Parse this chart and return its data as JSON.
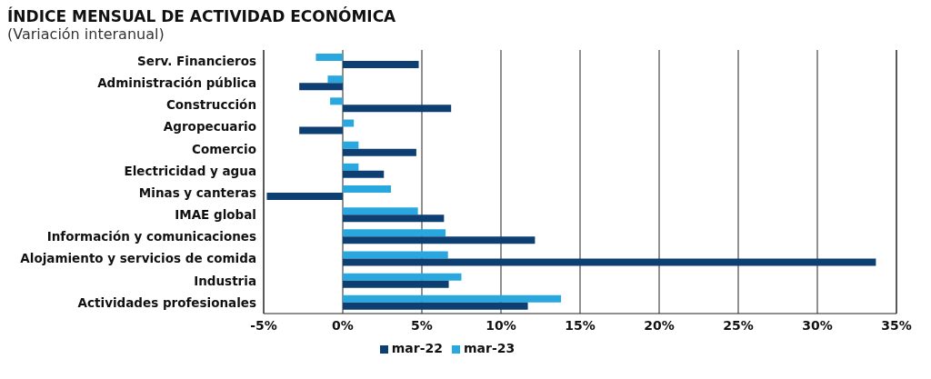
{
  "chart_data": {
    "type": "bar",
    "orientation": "horizontal",
    "title": "ÍNDICE MENSUAL DE ACTIVIDAD ECONÓMICA",
    "subtitle": "(Variación interanual)",
    "categories": [
      "Serv. Financieros",
      "Administración pública",
      "Construcción",
      "Agropecuario",
      "Comercio",
      "Electricidad y agua",
      "Minas y canteras",
      "IMAE global",
      "Información y comunicaciones",
      "Alojamiento y servicios de comida",
      "Industria",
      "Actividades profesionales"
    ],
    "series": [
      {
        "name": "mar-23",
        "color": "#29a8e0",
        "values": [
          -1.7,
          -0.95,
          -0.8,
          0.7,
          1.0,
          1.0,
          3.05,
          4.75,
          6.5,
          6.65,
          7.5,
          13.8
        ]
      },
      {
        "name": "mar-22",
        "color": "#0d3f73",
        "values": [
          4.8,
          -2.75,
          6.85,
          -2.75,
          4.65,
          2.6,
          -4.8,
          6.4,
          12.15,
          33.7,
          6.7,
          11.7
        ]
      }
    ],
    "xlim": [
      -5,
      35
    ],
    "xticks": [
      {
        "value": -5,
        "label": "-5%"
      },
      {
        "value": 0,
        "label": "0%"
      },
      {
        "value": 5,
        "label": "5%"
      },
      {
        "value": 10,
        "label": "10%"
      },
      {
        "value": 15,
        "label": "15%"
      },
      {
        "value": 20,
        "label": "20%"
      },
      {
        "value": 25,
        "label": "25%"
      },
      {
        "value": 30,
        "label": "30%"
      },
      {
        "value": 35,
        "label": "35%"
      }
    ],
    "grid": "x",
    "legend": "bottom"
  }
}
